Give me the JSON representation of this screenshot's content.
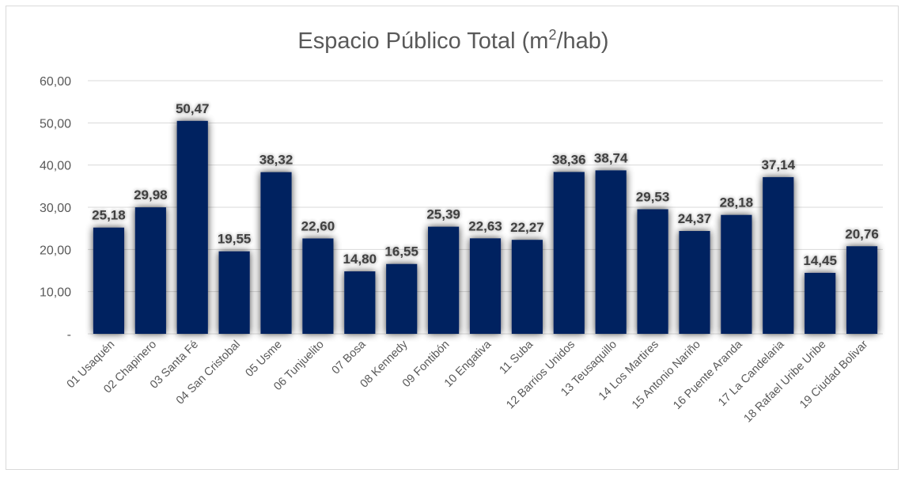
{
  "chart_data": {
    "type": "bar",
    "title": "Espacio Público Total (m²/hab)",
    "title_main": "Espacio Público Total (m",
    "title_sup": "2",
    "title_tail": "/hab)",
    "xlabel": "",
    "ylabel": "",
    "ylim": [
      0,
      60
    ],
    "yticks": [
      0,
      10,
      20,
      30,
      40,
      50,
      60
    ],
    "ytick_labels": [
      "-",
      "10,00",
      "20,00",
      "30,00",
      "40,00",
      "50,00",
      "60,00"
    ],
    "grid": true,
    "legend": "none",
    "bar_color": "#002060",
    "categories": [
      "01 Usaquén",
      "02 Chapinero",
      "03 Santa Fé",
      "04 San Cristobal",
      "05 Usme",
      "06 Tunjuelito",
      "07 Bosa",
      "08 Kennedy",
      "09 Fontibón",
      "10 Engativa",
      "11 Suba",
      "12 Barrios Unidos",
      "13 Teusaquillo",
      "14 Los Martires",
      "15 Antonio Nariño",
      "16 Puente Aranda",
      "17 La Candelaria",
      "18 Rafael Uribe Uribe",
      "19 Ciudad Bolivar"
    ],
    "values": [
      25.18,
      29.98,
      50.47,
      19.55,
      38.32,
      22.6,
      14.8,
      16.55,
      25.39,
      22.63,
      22.27,
      38.36,
      38.74,
      29.53,
      24.37,
      28.18,
      37.14,
      14.45,
      20.76
    ],
    "data_labels": [
      "25,18",
      "29,98",
      "50,47",
      "19,55",
      "38,32",
      "22,60",
      "14,80",
      "16,55",
      "25,39",
      "22,63",
      "22,27",
      "38,36",
      "38,74",
      "29,53",
      "24,37",
      "28,18",
      "37,14",
      "14,45",
      "20,76"
    ]
  }
}
